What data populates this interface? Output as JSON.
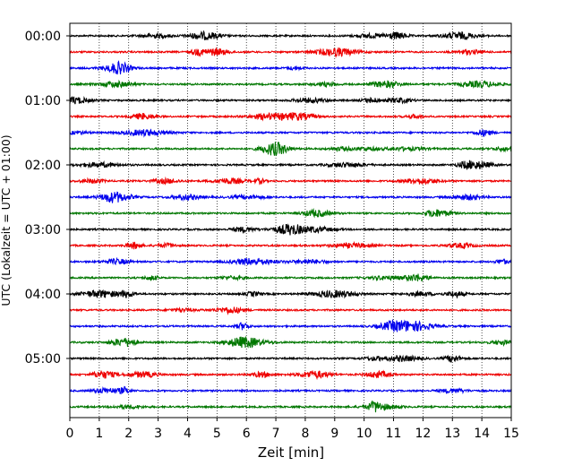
{
  "chart_data": {
    "type": "line",
    "title": "",
    "xlabel": "Zeit  [min]",
    "ylabel": "UTC (Lokalzeit = UTC + 01:00)",
    "xlim": [
      0,
      15
    ],
    "x_ticks": [
      "0",
      "1",
      "2",
      "3",
      "4",
      "5",
      "6",
      "7",
      "8",
      "9",
      "10",
      "11",
      "12",
      "13",
      "14",
      "15"
    ],
    "y_ticks": [
      "00:00",
      "01:00",
      "02:00",
      "03:00",
      "04:00",
      "05:00"
    ],
    "grid": "vertical dotted at each minute",
    "trace_interval_minutes": 15,
    "trace_starts": [
      "00:00",
      "00:15",
      "00:30",
      "00:45",
      "01:00",
      "01:15",
      "01:30",
      "01:45",
      "02:00",
      "02:15",
      "02:30",
      "02:45",
      "03:00",
      "03:15",
      "03:30",
      "03:45",
      "04:00",
      "04:15",
      "04:30",
      "04:45",
      "05:00",
      "05:15",
      "05:30",
      "05:45"
    ],
    "trace_colors": [
      "#000000",
      "#ee0000",
      "#0000ee",
      "#007700"
    ]
  }
}
